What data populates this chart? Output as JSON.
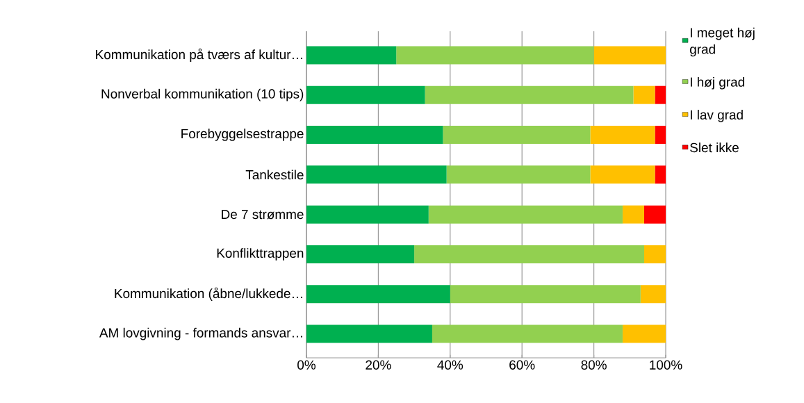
{
  "chart_data": {
    "type": "bar",
    "orientation": "horizontal",
    "stacked": true,
    "categories": [
      "Kommunikation på tværs af kultur…",
      "Nonverbal kommunikation (10 tips)",
      "Forebyggelsestrappe",
      "Tankestile",
      "De 7 strømme",
      "Konflikttrappen",
      "Kommunikation (åbne/lukkede…",
      "AM lovgivning - formands ansvar…"
    ],
    "series": [
      {
        "name": "I meget høj grad",
        "color": "#00b050",
        "values": [
          25,
          33,
          38,
          39,
          34,
          30,
          40,
          35
        ]
      },
      {
        "name": "I høj grad",
        "color": "#92d050",
        "values": [
          55,
          58,
          41,
          40,
          54,
          64,
          53,
          53
        ]
      },
      {
        "name": "I lav grad",
        "color": "#ffc000",
        "values": [
          20,
          6,
          18,
          18,
          6,
          6,
          7,
          12
        ]
      },
      {
        "name": "Slet ikke",
        "color": "#ff0000",
        "values": [
          0,
          3,
          3,
          3,
          6,
          0,
          0,
          0
        ]
      }
    ],
    "xlim": [
      0,
      100
    ],
    "xticks": [
      {
        "value": 0,
        "label": "0%"
      },
      {
        "value": 20,
        "label": "20%"
      },
      {
        "value": 40,
        "label": "40%"
      },
      {
        "value": 60,
        "label": "60%"
      },
      {
        "value": 80,
        "label": "80%"
      },
      {
        "value": 100,
        "label": "100%"
      }
    ],
    "grid": "x",
    "legend": "right"
  }
}
